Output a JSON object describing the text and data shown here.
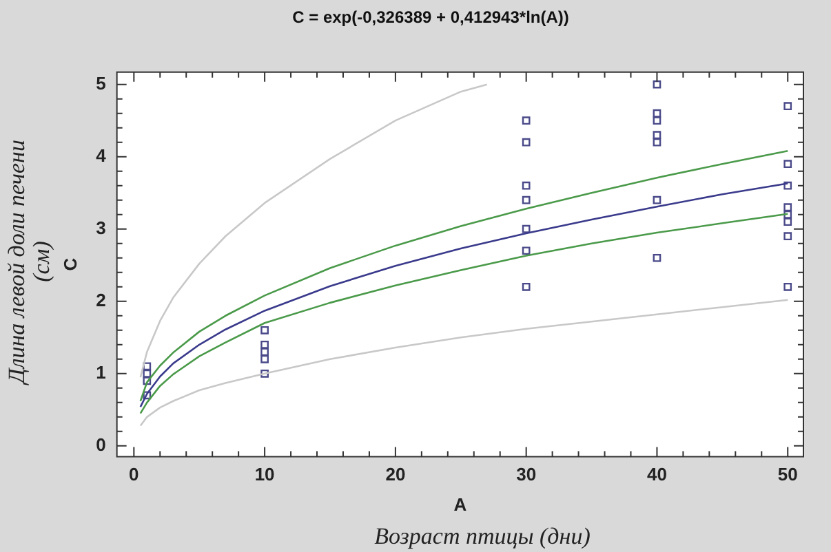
{
  "chart_data": {
    "type": "scatter",
    "title": "C = exp(-0,326389 + 0,412943*ln(A))",
    "xlabel": "A",
    "ylabel": "C",
    "annotations": [
      "Возраст птицы (дни)",
      "Длина левой доли печени (см)"
    ],
    "xlim": [
      -1.3,
      51.2
    ],
    "ylim": [
      -0.15,
      5.17
    ],
    "xticks": [
      0,
      {
        "value": 2,
        "label": null
      },
      {
        "value": 4,
        "label": null
      },
      {
        "value": 6,
        "label": null
      },
      {
        "value": 8,
        "label": null
      },
      10,
      {
        "value": 12,
        "label": null
      },
      {
        "value": 14,
        "label": null
      },
      {
        "value": 16,
        "label": null
      },
      {
        "value": 18,
        "label": null
      },
      20,
      {
        "value": 22,
        "label": null
      },
      {
        "value": 24,
        "label": null
      },
      {
        "value": 26,
        "label": null
      },
      {
        "value": 28,
        "label": null
      },
      30,
      {
        "value": 32,
        "label": null
      },
      {
        "value": 34,
        "label": null
      },
      {
        "value": 36,
        "label": null
      },
      {
        "value": 38,
        "label": null
      },
      40,
      {
        "value": 42,
        "label": null
      },
      {
        "value": 44,
        "label": null
      },
      {
        "value": 46,
        "label": null
      },
      {
        "value": 48,
        "label": null
      },
      50
    ],
    "yticks": [
      0,
      {
        "value": 0.2,
        "label": null
      },
      {
        "value": 0.4,
        "label": null
      },
      {
        "value": 0.6,
        "label": null
      },
      {
        "value": 0.8,
        "label": null
      },
      1,
      {
        "value": 1.2,
        "label": null
      },
      {
        "value": 1.4,
        "label": null
      },
      {
        "value": 1.6,
        "label": null
      },
      {
        "value": 1.8,
        "label": null
      },
      2,
      {
        "value": 2.2,
        "label": null
      },
      {
        "value": 2.4,
        "label": null
      },
      {
        "value": 2.6,
        "label": null
      },
      {
        "value": 2.8,
        "label": null
      },
      3,
      {
        "value": 3.2,
        "label": null
      },
      {
        "value": 3.4,
        "label": null
      },
      {
        "value": 3.6,
        "label": null
      },
      {
        "value": 3.8,
        "label": null
      },
      4,
      {
        "value": 4.2,
        "label": null
      },
      {
        "value": 4.4,
        "label": null
      },
      {
        "value": 4.6,
        "label": null
      },
      {
        "value": 4.8,
        "label": null
      },
      5
    ],
    "grid": false,
    "legend": false,
    "marker": "square",
    "series": [
      {
        "type": "line",
        "color": "#c8c8c8",
        "marker": "none",
        "x": [
          0.5,
          1,
          2,
          3,
          5,
          7,
          10,
          15,
          20,
          25,
          30,
          35,
          40,
          45,
          50
        ],
        "values": [
          0.28,
          0.4,
          0.53,
          0.62,
          0.77,
          0.87,
          1.0,
          1.2,
          1.36,
          1.5,
          1.62,
          1.72,
          1.82,
          1.92,
          2.02
        ]
      },
      {
        "type": "line",
        "color": "#c8c8c8",
        "marker": "none",
        "x": [
          0.5,
          1,
          2,
          3,
          5,
          7,
          10,
          15,
          20,
          25,
          27
        ],
        "values": [
          0.95,
          1.3,
          1.73,
          2.05,
          2.52,
          2.9,
          3.36,
          3.97,
          4.5,
          4.9,
          5.0
        ]
      },
      {
        "type": "line",
        "color": "#4a9a4a",
        "marker": "none",
        "x": [
          0.5,
          1,
          2,
          3,
          5,
          7,
          10,
          15,
          20,
          25,
          30,
          35,
          40,
          45,
          50
        ],
        "values": [
          0.45,
          0.6,
          0.83,
          0.99,
          1.24,
          1.43,
          1.7,
          1.98,
          2.22,
          2.43,
          2.63,
          2.8,
          2.95,
          3.08,
          3.21
        ]
      },
      {
        "type": "line",
        "color": "#4a9a4a",
        "marker": "none",
        "x": [
          0.5,
          1,
          2,
          3,
          5,
          7,
          10,
          15,
          20,
          25,
          30,
          35,
          40,
          45,
          50
        ],
        "values": [
          0.62,
          0.88,
          1.11,
          1.29,
          1.58,
          1.8,
          2.08,
          2.46,
          2.77,
          3.04,
          3.28,
          3.5,
          3.71,
          3.9,
          4.08
        ]
      },
      {
        "type": "line",
        "color": "#3a3a8c",
        "marker": "none",
        "x": [
          0.5,
          1,
          2,
          3,
          5,
          7,
          10,
          15,
          20,
          25,
          30,
          35,
          40,
          45,
          50
        ],
        "values": [
          0.54,
          0.72,
          0.96,
          1.14,
          1.4,
          1.61,
          1.87,
          2.21,
          2.49,
          2.73,
          2.94,
          3.13,
          3.31,
          3.48,
          3.63
        ]
      },
      {
        "color": "#4a4a8a",
        "x": [
          1,
          1,
          1,
          1,
          10,
          10,
          10,
          10,
          10,
          30,
          30,
          30,
          30,
          30,
          30,
          30,
          40,
          40,
          40,
          40,
          40,
          40,
          40,
          50,
          50,
          50,
          50,
          50,
          50,
          50,
          50
        ],
        "values": [
          1.1,
          1.0,
          0.9,
          0.7,
          1.6,
          1.4,
          1.3,
          1.2,
          1.0,
          4.5,
          4.2,
          3.6,
          3.4,
          3.0,
          2.7,
          2.2,
          5.0,
          4.6,
          4.5,
          4.3,
          4.2,
          3.4,
          2.6,
          4.7,
          3.9,
          3.6,
          3.3,
          3.2,
          3.1,
          2.9,
          2.2
        ]
      }
    ]
  }
}
